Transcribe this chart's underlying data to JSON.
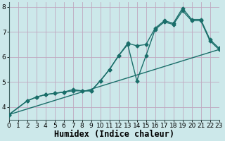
{
  "xlabel": "Humidex (Indice chaleur)",
  "bg_color": "#cce8ea",
  "grid_color": "#c0a8c0",
  "line_color": "#1a6e6a",
  "line1_x": [
    0,
    23
  ],
  "line1_y": [
    3.7,
    6.3
  ],
  "line2_x": [
    0,
    2,
    3,
    4,
    5,
    6,
    7,
    8,
    9,
    10,
    11,
    12,
    13,
    14,
    15,
    16,
    17,
    18,
    19,
    20,
    21,
    22,
    23
  ],
  "line2_y": [
    3.7,
    4.25,
    4.4,
    4.5,
    4.55,
    4.6,
    4.65,
    4.65,
    4.65,
    5.05,
    5.5,
    6.05,
    6.5,
    5.05,
    6.05,
    7.1,
    7.4,
    7.3,
    7.85,
    7.45,
    7.45,
    6.65,
    6.3
  ],
  "line3_x": [
    0,
    2,
    3,
    4,
    5,
    6,
    7,
    8,
    9,
    10,
    11,
    12,
    13,
    14,
    15,
    16,
    17,
    18,
    19,
    20,
    21,
    22,
    23
  ],
  "line3_y": [
    3.7,
    4.25,
    4.4,
    4.5,
    4.55,
    4.6,
    4.7,
    4.65,
    4.65,
    5.05,
    5.5,
    6.05,
    6.55,
    6.45,
    6.5,
    7.15,
    7.45,
    7.35,
    7.95,
    7.5,
    7.5,
    6.7,
    6.35
  ],
  "xlim": [
    0,
    23
  ],
  "ylim": [
    3.5,
    8.2
  ],
  "yticks": [
    4,
    5,
    6,
    7,
    8
  ],
  "xticks": [
    0,
    1,
    2,
    3,
    4,
    5,
    6,
    7,
    8,
    9,
    10,
    11,
    12,
    13,
    14,
    15,
    16,
    17,
    18,
    19,
    20,
    21,
    22,
    23
  ],
  "marker": "D",
  "markersize": 2.5,
  "linewidth": 1.0,
  "tick_fontsize": 6.5,
  "xlabel_fontsize": 8.5
}
